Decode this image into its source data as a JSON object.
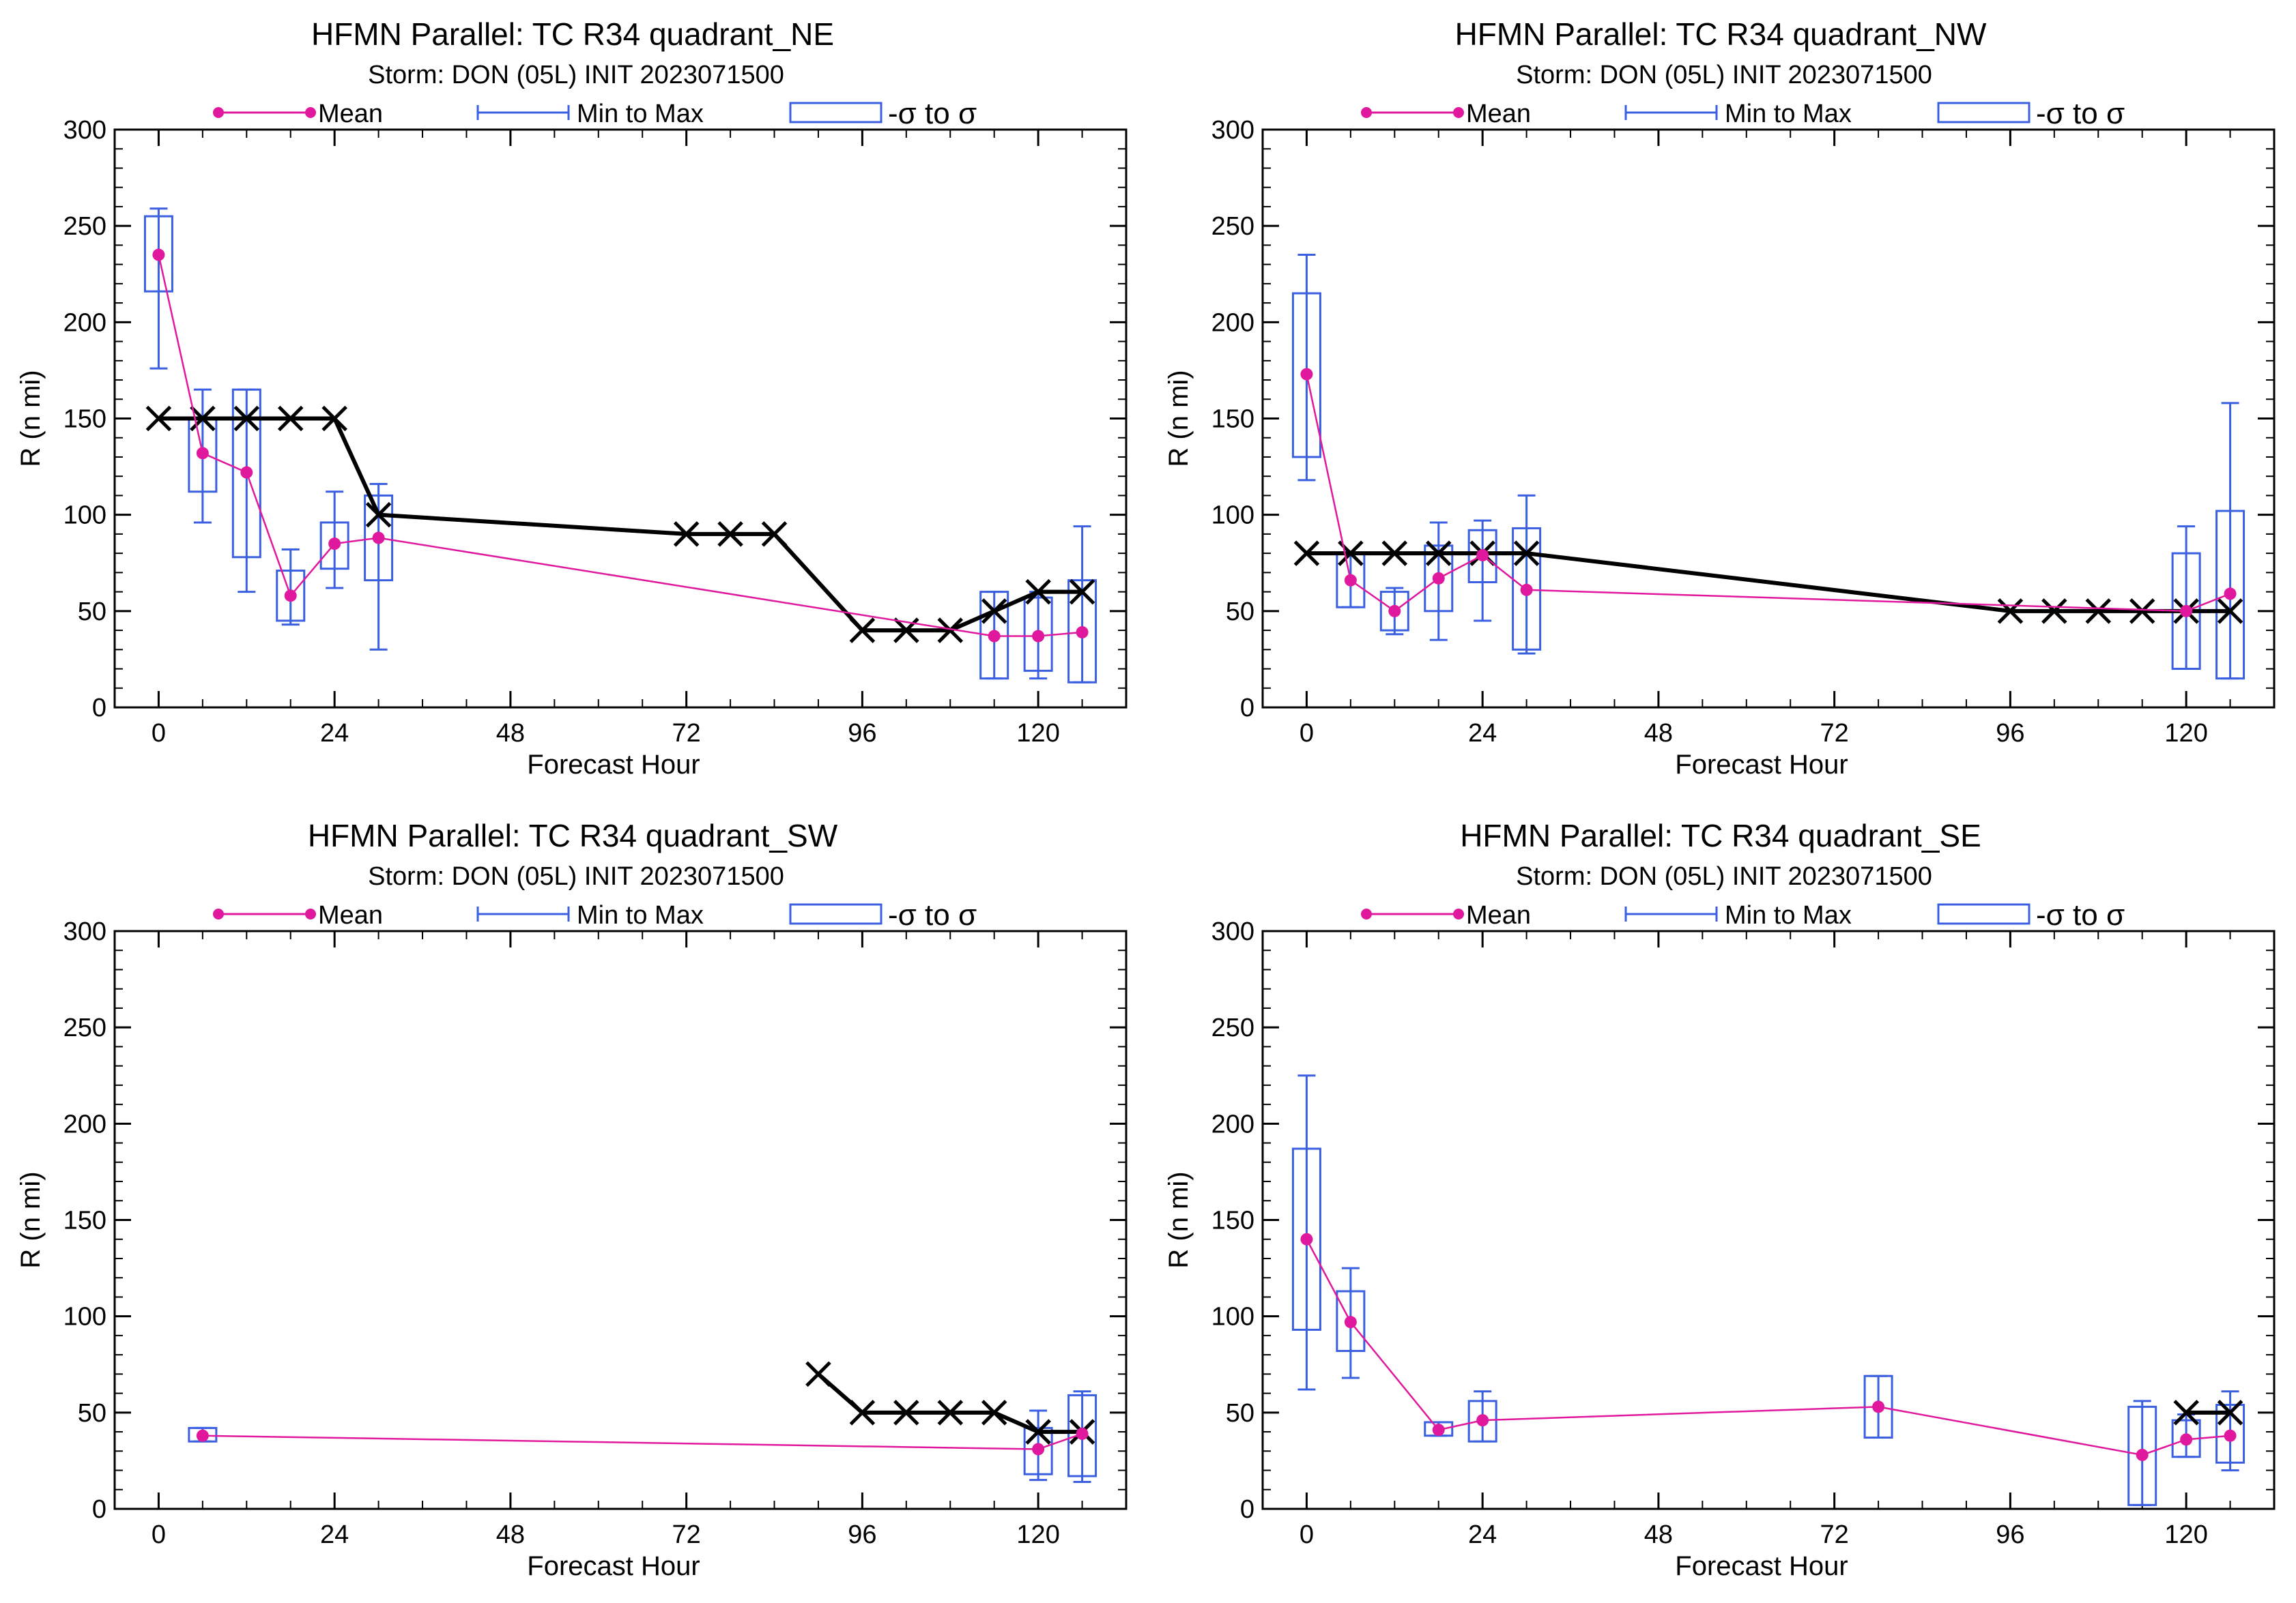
{
  "legend": {
    "mean_label": "Mean",
    "minmax_label": "Min to Max",
    "sigma_label": "-σ to σ"
  },
  "colors": {
    "mean": "#e0189e",
    "box": "#3a5fe0",
    "best_track": "#000000"
  },
  "chart_data": [
    {
      "type": "line",
      "title": "HFMN Parallel: TC  R34 quadrant_NE",
      "subtitle": "Storm: DON (05L) INIT 2023071500",
      "xlabel": "Forecast Hour",
      "ylabel": "R (n mi)",
      "xlim": [
        -6,
        132
      ],
      "ylim": [
        0,
        300
      ],
      "xticks": [
        0,
        24,
        48,
        72,
        96,
        120
      ],
      "yticks": [
        0,
        50,
        100,
        150,
        200,
        250,
        300
      ],
      "boxes": [
        {
          "hour": 0,
          "min": 176,
          "max": 259,
          "q_low": 216,
          "q_high": 255,
          "mean": 235
        },
        {
          "hour": 6,
          "min": 96,
          "max": 165,
          "q_low": 112,
          "q_high": 150,
          "mean": 132
        },
        {
          "hour": 12,
          "min": 60,
          "max": 165,
          "q_low": 78,
          "q_high": 165,
          "mean": 122
        },
        {
          "hour": 18,
          "min": 43,
          "max": 82,
          "q_low": 45,
          "q_high": 71,
          "mean": 58
        },
        {
          "hour": 24,
          "min": 62,
          "max": 112,
          "q_low": 72,
          "q_high": 96,
          "mean": 85
        },
        {
          "hour": 30,
          "min": 30,
          "max": 116,
          "q_low": 66,
          "q_high": 110,
          "mean": 88
        },
        {
          "hour": 114,
          "min": 15,
          "max": 60,
          "q_low": 15,
          "q_high": 60,
          "mean": 37
        },
        {
          "hour": 120,
          "min": 15,
          "max": 60,
          "q_low": 19,
          "q_high": 57,
          "mean": 37
        },
        {
          "hour": 126,
          "min": 13,
          "max": 94,
          "q_low": 13,
          "q_high": 66,
          "mean": 39
        }
      ],
      "best_track": {
        "x": [
          0,
          6,
          12,
          18,
          24,
          30,
          72,
          78,
          84,
          96,
          102,
          108,
          114,
          120,
          126
        ],
        "y": [
          150,
          150,
          150,
          150,
          150,
          100,
          90,
          90,
          90,
          40,
          40,
          40,
          50,
          60,
          60
        ]
      }
    },
    {
      "type": "line",
      "title": "HFMN Parallel: TC  R34 quadrant_NW",
      "subtitle": "Storm: DON (05L) INIT 2023071500",
      "xlabel": "Forecast Hour",
      "ylabel": "R (n mi)",
      "xlim": [
        -6,
        132
      ],
      "ylim": [
        0,
        300
      ],
      "xticks": [
        0,
        24,
        48,
        72,
        96,
        120
      ],
      "yticks": [
        0,
        50,
        100,
        150,
        200,
        250,
        300
      ],
      "boxes": [
        {
          "hour": 0,
          "min": 118,
          "max": 235,
          "q_low": 130,
          "q_high": 215,
          "mean": 173
        },
        {
          "hour": 6,
          "min": 52,
          "max": 80,
          "q_low": 52,
          "q_high": 80,
          "mean": 66
        },
        {
          "hour": 12,
          "min": 38,
          "max": 62,
          "q_low": 40,
          "q_high": 60,
          "mean": 50
        },
        {
          "hour": 18,
          "min": 35,
          "max": 96,
          "q_low": 50,
          "q_high": 84,
          "mean": 67
        },
        {
          "hour": 24,
          "min": 45,
          "max": 97,
          "q_low": 65,
          "q_high": 92,
          "mean": 79
        },
        {
          "hour": 30,
          "min": 28,
          "max": 110,
          "q_low": 30,
          "q_high": 93,
          "mean": 61
        },
        {
          "hour": 120,
          "min": 20,
          "max": 94,
          "q_low": 20,
          "q_high": 80,
          "mean": 50
        },
        {
          "hour": 126,
          "min": 15,
          "max": 158,
          "q_low": 15,
          "q_high": 102,
          "mean": 59
        }
      ],
      "best_track": {
        "x": [
          0,
          6,
          12,
          18,
          24,
          30,
          96,
          102,
          108,
          114,
          120,
          126
        ],
        "y": [
          80,
          80,
          80,
          80,
          80,
          80,
          50,
          50,
          50,
          50,
          50,
          50
        ]
      }
    },
    {
      "type": "line",
      "title": "HFMN Parallel: TC  R34 quadrant_SW",
      "subtitle": "Storm: DON (05L) INIT 2023071500",
      "xlabel": "Forecast Hour",
      "ylabel": "R (n mi)",
      "xlim": [
        -6,
        132
      ],
      "ylim": [
        0,
        300
      ],
      "xticks": [
        0,
        24,
        48,
        72,
        96,
        120
      ],
      "yticks": [
        0,
        50,
        100,
        150,
        200,
        250,
        300
      ],
      "boxes": [
        {
          "hour": 6,
          "min": 35,
          "max": 42,
          "q_low": 35,
          "q_high": 42,
          "mean": 38
        },
        {
          "hour": 120,
          "min": 15,
          "max": 51,
          "q_low": 18,
          "q_high": 42,
          "mean": 31
        },
        {
          "hour": 126,
          "min": 14,
          "max": 61,
          "q_low": 17,
          "q_high": 59,
          "mean": 39
        }
      ],
      "best_track": {
        "x": [
          90,
          96,
          102,
          108,
          114,
          120,
          126
        ],
        "y": [
          70,
          50,
          50,
          50,
          50,
          40,
          40
        ]
      }
    },
    {
      "type": "line",
      "title": "HFMN Parallel: TC  R34 quadrant_SE",
      "subtitle": "Storm: DON (05L) INIT 2023071500",
      "xlabel": "Forecast Hour",
      "ylabel": "R (n mi)",
      "xlim": [
        -6,
        132
      ],
      "ylim": [
        0,
        300
      ],
      "xticks": [
        0,
        24,
        48,
        72,
        96,
        120
      ],
      "yticks": [
        0,
        50,
        100,
        150,
        200,
        250,
        300
      ],
      "boxes": [
        {
          "hour": 0,
          "min": 62,
          "max": 225,
          "q_low": 93,
          "q_high": 187,
          "mean": 140
        },
        {
          "hour": 6,
          "min": 68,
          "max": 125,
          "q_low": 82,
          "q_high": 113,
          "mean": 97
        },
        {
          "hour": 18,
          "min": 38,
          "max": 45,
          "q_low": 38,
          "q_high": 45,
          "mean": 41
        },
        {
          "hour": 24,
          "min": 35,
          "max": 61,
          "q_low": 35,
          "q_high": 56,
          "mean": 46
        },
        {
          "hour": 78,
          "min": 37,
          "max": 69,
          "q_low": 37,
          "q_high": 69,
          "mean": 53
        },
        {
          "hour": 114,
          "min": 2,
          "max": 56,
          "q_low": 2,
          "q_high": 53,
          "mean": 28
        },
        {
          "hour": 120,
          "min": 27,
          "max": 49,
          "q_low": 27,
          "q_high": 46,
          "mean": 36
        },
        {
          "hour": 126,
          "min": 20,
          "max": 61,
          "q_low": 24,
          "q_high": 54,
          "mean": 38
        }
      ],
      "best_track": {
        "x": [
          120,
          126
        ],
        "y": [
          50,
          50
        ]
      }
    }
  ]
}
